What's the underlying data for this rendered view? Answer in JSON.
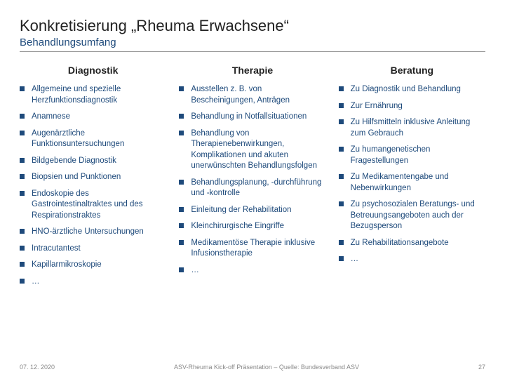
{
  "title": "Konkretisierung „Rheuma Erwachsene“",
  "subtitle": "Behandlungsumfang",
  "columns": [
    {
      "heading": "Diagnostik",
      "items": [
        "Allgemeine und spezielle Herzfunktionsdiagnostik",
        "Anamnese",
        "Augenärztliche Funktionsuntersuchungen",
        "Bildgebende Diagnostik",
        "Biopsien und Punktionen",
        "Endoskopie des Gastrointestinaltraktes und des Respirationstraktes",
        "HNO-ärztliche Untersuchungen",
        "Intracutantest",
        "Kapillarmikroskopie",
        "…"
      ]
    },
    {
      "heading": "Therapie",
      "items": [
        "Ausstellen z. B. von Bescheinigungen, Anträgen",
        "Behandlung in Notfallsituationen",
        "Behandlung von Therapienebenwirkungen, Komplikationen und akuten unerwünschten Behandlungsfolgen",
        "Behandlungsplanung, -durchführung und -kontrolle",
        "Einleitung der Rehabilitation",
        "Kleinchirurgische Eingriffe",
        "Medikamentöse Therapie inklusive Infusionstherapie",
        "…"
      ]
    },
    {
      "heading": "Beratung",
      "items": [
        "Zu Diagnostik und Behandlung",
        "Zur Ernährung",
        "Zu Hilfsmitteln inklusive Anleitung zum Gebrauch",
        "Zu humangenetischen Fragestellungen",
        "Zu Medikamentengabe und Nebenwirkungen",
        "Zu psychosozialen Beratungs- und Betreuungsangeboten auch der Bezugsperson",
        "Zu Rehabilitationsangebote",
        "…"
      ]
    }
  ],
  "footer": {
    "date": "07. 12. 2020",
    "source": "ASV-Rheuma Kick-off Präsentation – Quelle: Bundesverband ASV",
    "page": "27"
  },
  "colors": {
    "accent": "#1e4a7b",
    "text": "#222",
    "muted": "#888"
  }
}
